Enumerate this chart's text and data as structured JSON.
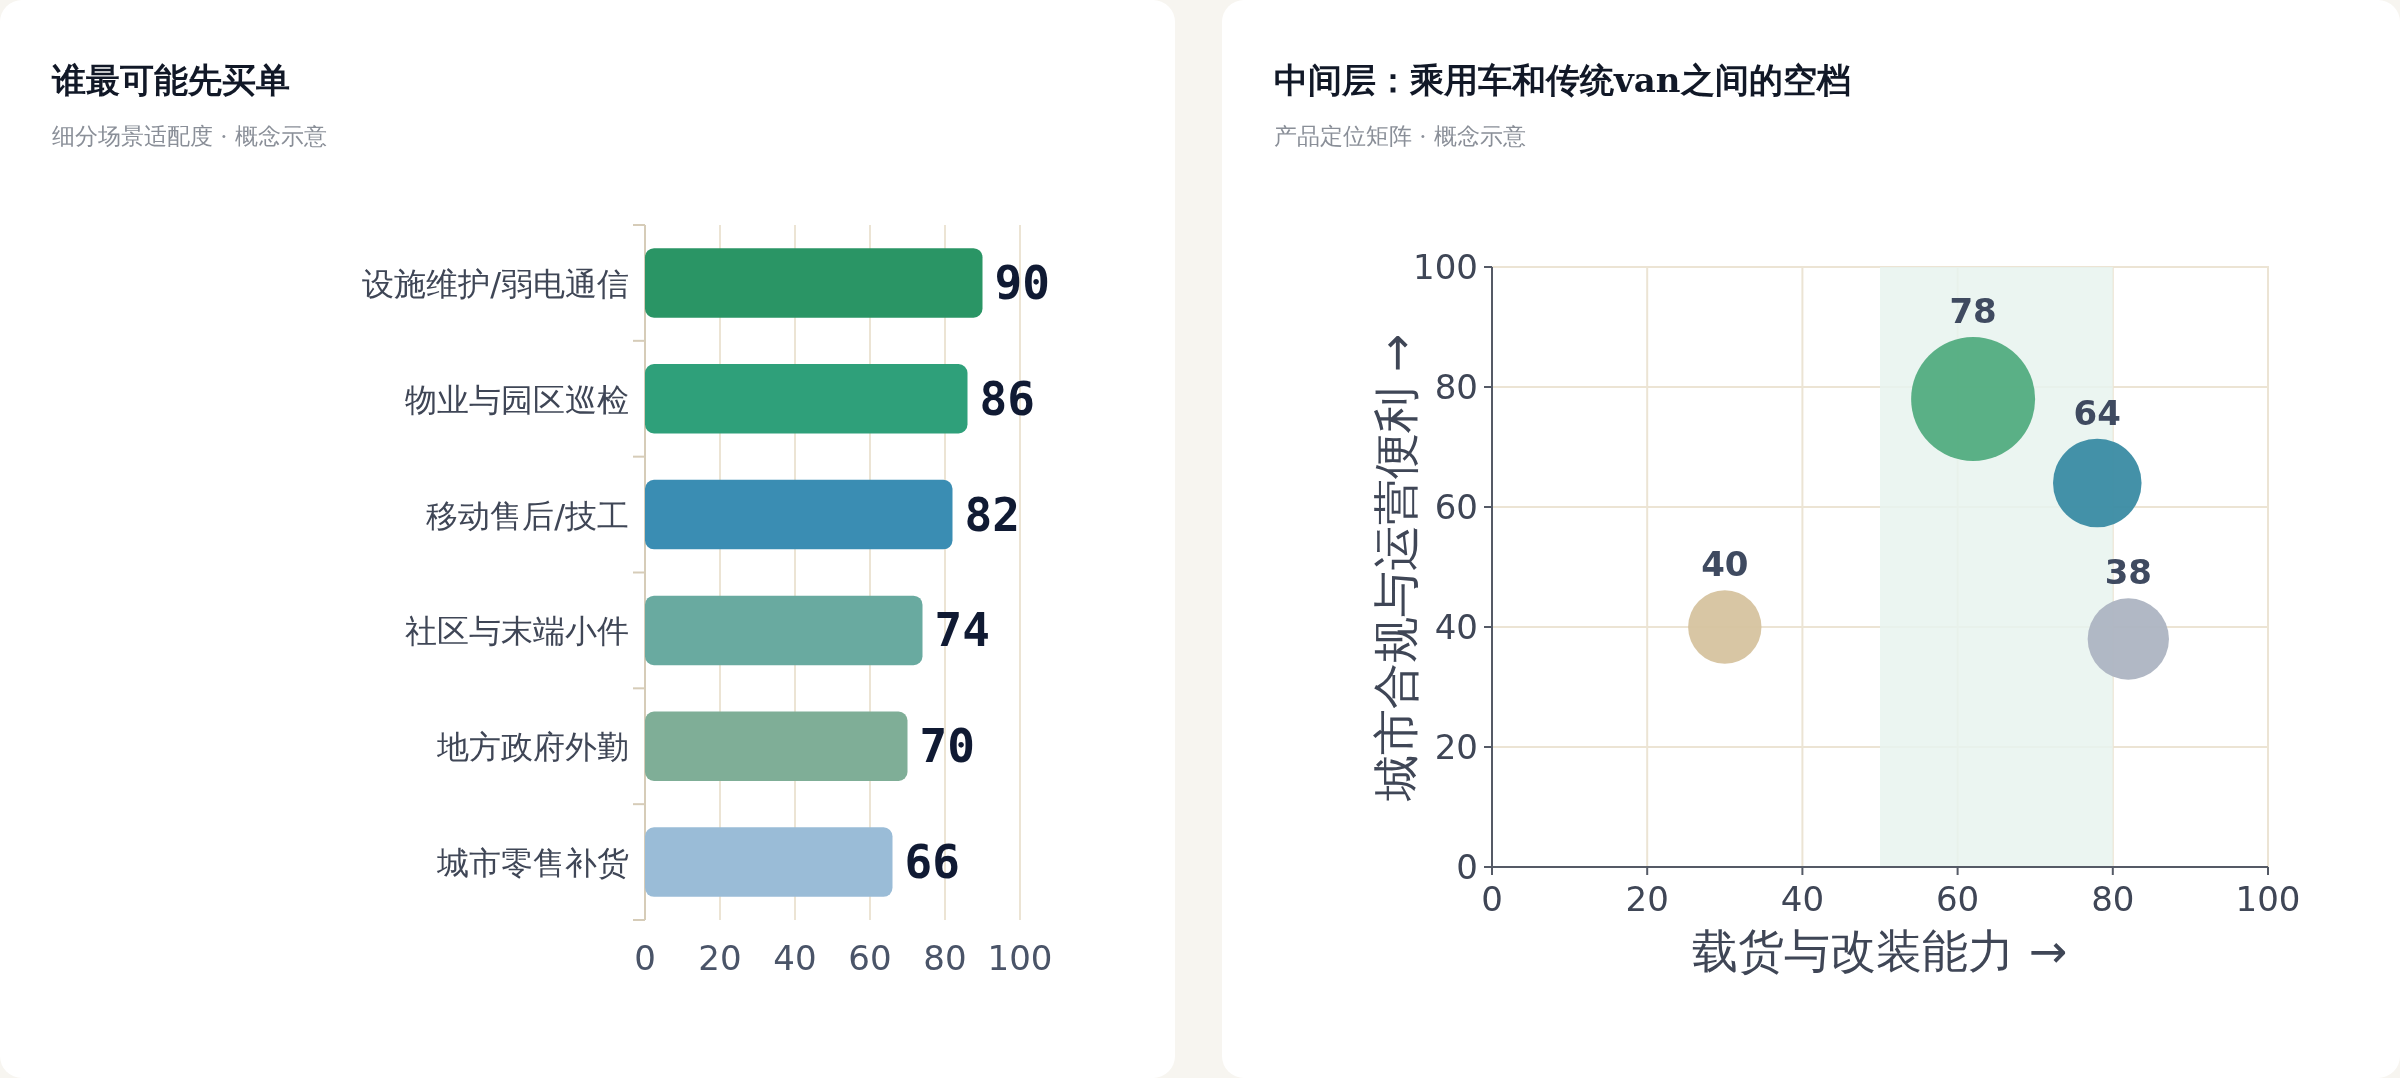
{
  "chart_data": [
    {
      "type": "bar",
      "title": "谁最可能先买单",
      "subtitle": "细分场景适配度 · 概念示意",
      "orientation": "horizontal",
      "categories": [
        "设施维护/弱电通信",
        "物业与园区巡检",
        "移动售后/技工",
        "社区与末端小件",
        "地方政府外勤",
        "城市零售补货"
      ],
      "values": [
        90,
        86,
        82,
        74,
        70,
        66
      ],
      "colors": [
        "#2a9565",
        "#2fa07a",
        "#3a8db3",
        "#69aaa0",
        "#7fae97",
        "#9abcd7"
      ],
      "xlim": [
        0,
        100
      ],
      "xticks": [
        0,
        20,
        40,
        60,
        80,
        100
      ],
      "grid": "x",
      "data_labels": true
    },
    {
      "type": "bubble",
      "title": "中间层：乘用车和传统van之间的空档",
      "subtitle": "产品定位矩阵 · 概念示意",
      "xlabel": "载货与改装能力 →",
      "ylabel": "城市合规与运营便利 →",
      "x": [
        62,
        78,
        30,
        82
      ],
      "values": [
        78,
        64,
        40,
        38
      ],
      "sizes": [
        1,
        0.51,
        0.35,
        0.43
      ],
      "colors": [
        "#52ac80",
        "#3a8ba3",
        "#d6c39f",
        "#adb4c2"
      ],
      "xlim": [
        0,
        100
      ],
      "ylim": [
        0,
        100
      ],
      "xticks": [
        0,
        20,
        40,
        60,
        80,
        100
      ],
      "yticks": [
        0,
        20,
        40,
        60,
        80,
        100
      ],
      "grid": true,
      "data_labels": true,
      "bands": [
        {
          "axis": "x",
          "from": 50,
          "to": 80,
          "color": "#e8f3ee"
        }
      ]
    }
  ]
}
